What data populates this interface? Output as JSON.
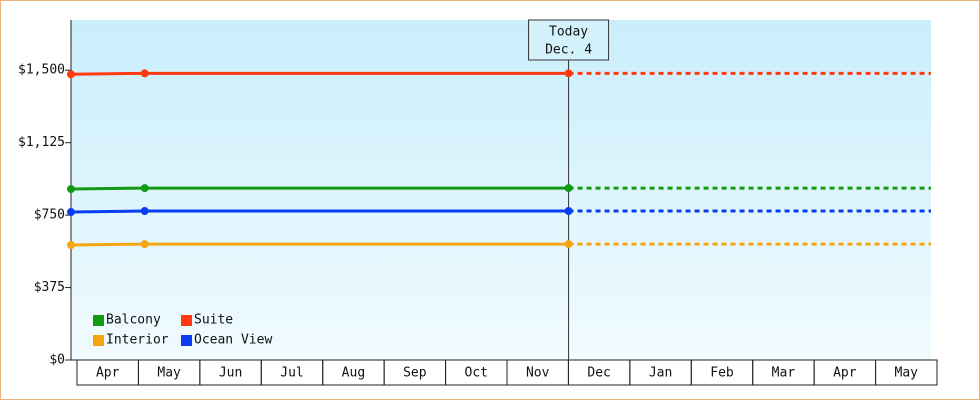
{
  "chart_data": {
    "type": "line",
    "categories": [
      "Apr",
      "May",
      "Jun",
      "Jul",
      "Aug",
      "Sep",
      "Oct",
      "Nov",
      "Dec",
      "Jan",
      "Feb",
      "Mar",
      "Apr",
      "May"
    ],
    "x": [
      0,
      1.2,
      8.1
    ],
    "xlim": [
      0,
      14
    ],
    "series": [
      {
        "name": "Balcony",
        "color": "#129a12",
        "values": [
          885,
          890,
          890
        ]
      },
      {
        "name": "Suite",
        "color": "#ff3a10",
        "values": [
          1479,
          1484,
          1484
        ]
      },
      {
        "name": "Interior",
        "color": "#f5a512",
        "values": [
          595,
          600,
          600
        ]
      },
      {
        "name": "Ocean View",
        "color": "#0a3cf0",
        "values": [
          766,
          771,
          771
        ]
      }
    ],
    "ylim": [
      0,
      1760
    ],
    "yticks": [
      {
        "value": 0,
        "label": "$0"
      },
      {
        "value": 375,
        "label": "$375"
      },
      {
        "value": 750,
        "label": "$750"
      },
      {
        "value": 1125,
        "label": "$1,125"
      },
      {
        "value": 1500,
        "label": "$1,500"
      }
    ],
    "annotation": {
      "x": 8.1,
      "lines": [
        "Today",
        "Dec. 4"
      ]
    },
    "legend": "lower left"
  }
}
